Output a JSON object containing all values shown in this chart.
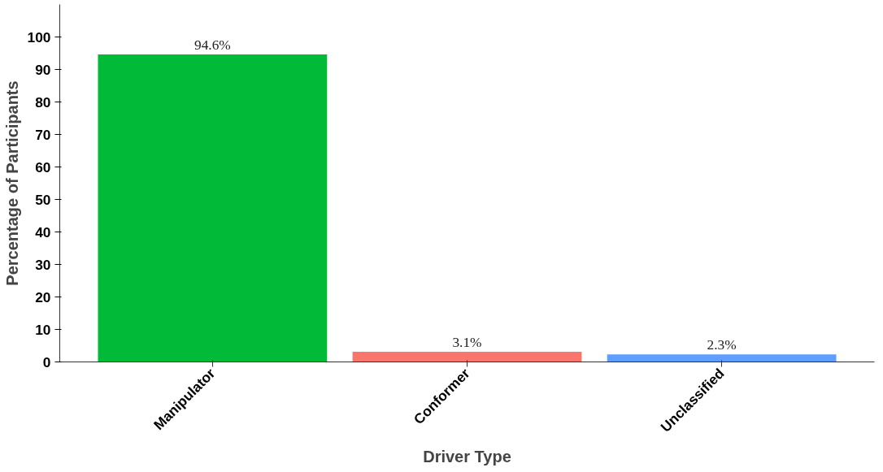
{
  "chart_data": {
    "type": "bar",
    "xlabel": "Driver Type",
    "ylabel": "Percentage of Participants",
    "categories": [
      "Manipulator",
      "Conformer",
      "Unclassified"
    ],
    "values": [
      94.6,
      3.1,
      2.3
    ],
    "colors": [
      "#00ba38",
      "#f8766d",
      "#619cff"
    ],
    "value_labels": [
      "94.6%",
      "3.1%",
      "2.3%"
    ],
    "ylim": [
      0,
      110
    ],
    "yticks": [
      0,
      10,
      20,
      30,
      40,
      50,
      60,
      70,
      80,
      90,
      100
    ],
    "grid": false
  }
}
